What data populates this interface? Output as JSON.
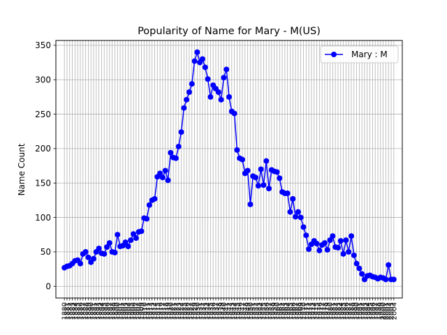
{
  "chart_data": {
    "type": "line",
    "title": "Popularity of Name for Mary - M(US)",
    "xlabel": "",
    "ylabel": "Name Count",
    "x": [
      1880,
      1881,
      1882,
      1883,
      1884,
      1885,
      1886,
      1887,
      1888,
      1889,
      1890,
      1891,
      1892,
      1893,
      1894,
      1895,
      1896,
      1897,
      1898,
      1899,
      1900,
      1901,
      1902,
      1903,
      1904,
      1905,
      1906,
      1907,
      1908,
      1909,
      1910,
      1911,
      1912,
      1913,
      1914,
      1915,
      1916,
      1917,
      1918,
      1919,
      1920,
      1921,
      1922,
      1923,
      1924,
      1925,
      1926,
      1927,
      1928,
      1929,
      1930,
      1931,
      1932,
      1933,
      1934,
      1935,
      1936,
      1937,
      1938,
      1939,
      1940,
      1941,
      1942,
      1943,
      1944,
      1945,
      1946,
      1947,
      1948,
      1949,
      1950,
      1951,
      1952,
      1953,
      1954,
      1955,
      1956,
      1957,
      1958,
      1959,
      1960,
      1961,
      1962,
      1963,
      1964,
      1965,
      1966,
      1967,
      1968,
      1969,
      1970,
      1971,
      1972,
      1973,
      1974,
      1975,
      1976,
      1977,
      1978,
      1979,
      1980,
      1981,
      1982,
      1983,
      1984,
      1985,
      1986,
      1987,
      1988,
      1989,
      1990,
      1991,
      1992,
      1993,
      1994,
      1995,
      1996,
      1997,
      1998,
      1999,
      2000,
      2001,
      2002,
      2003,
      2004
    ],
    "series": [
      {
        "name": "Mary : M",
        "color": "#0000ff",
        "values": [
          27,
          29,
          30,
          33,
          37,
          38,
          33,
          47,
          50,
          42,
          35,
          40,
          50,
          55,
          48,
          47,
          57,
          63,
          50,
          49,
          75,
          58,
          59,
          64,
          58,
          67,
          76,
          70,
          79,
          80,
          99,
          98,
          118,
          125,
          127,
          159,
          164,
          158,
          168,
          154,
          194,
          187,
          186,
          203,
          224,
          259,
          271,
          282,
          294,
          327,
          340,
          325,
          330,
          318,
          301,
          275,
          292,
          287,
          282,
          271,
          303,
          315,
          275,
          254,
          251,
          198,
          186,
          184,
          164,
          168,
          119,
          160,
          158,
          146,
          170,
          147,
          182,
          142,
          169,
          167,
          166,
          157,
          137,
          135,
          135,
          108,
          127,
          101,
          108,
          100,
          86,
          74,
          54,
          61,
          66,
          62,
          52,
          60,
          63,
          53,
          67,
          73,
          57,
          56,
          66,
          47,
          67,
          50,
          73,
          45,
          33,
          26,
          18,
          10,
          15,
          16,
          14,
          13,
          11,
          13,
          12,
          10,
          31,
          10,
          10
        ]
      }
    ],
    "x_ticks": [
      1880,
      1881,
      1882,
      1883,
      1884,
      1885,
      1886,
      1887,
      1888,
      1889,
      1890,
      1891,
      1892,
      1893,
      1894,
      1895,
      1896,
      1897,
      1898,
      1899,
      1900,
      1901,
      1902,
      1903,
      1904,
      1905,
      1906,
      1907,
      1908,
      1909,
      1910,
      1911,
      1912,
      1913,
      1914,
      1915,
      1916,
      1917,
      1918,
      1919,
      1920,
      1921,
      1922,
      1923,
      1924,
      1925,
      1926,
      1927,
      1928,
      1929,
      1930,
      1931,
      1932,
      1933,
      1934,
      1935,
      1936,
      1937,
      1938,
      1939,
      1940,
      1941,
      1942,
      1943,
      1944,
      1945,
      1946,
      1947,
      1948,
      1949,
      1950,
      1951,
      1952,
      1953,
      1954,
      1955,
      1956,
      1957,
      1958,
      1959,
      1960,
      1961,
      1962,
      1963,
      1964,
      1965,
      1966,
      1967,
      1968,
      1969,
      1970,
      1971,
      1972,
      1973,
      1974,
      1975,
      1976,
      1977,
      1978,
      1979,
      1980,
      1981,
      1982,
      1983,
      1984,
      1985,
      1986,
      1987,
      1988,
      1989,
      1990,
      1991,
      1992,
      1993,
      1994,
      1995,
      1996,
      1997,
      1998,
      1999,
      2000,
      2001,
      2002,
      2003,
      2004
    ],
    "y_ticks": [
      0,
      50,
      100,
      150,
      200,
      250,
      300,
      350
    ],
    "xlim": [
      1876.8,
      2007.2
    ],
    "ylim": [
      -17,
      357
    ],
    "grid": true,
    "legend_position": "top-right"
  }
}
